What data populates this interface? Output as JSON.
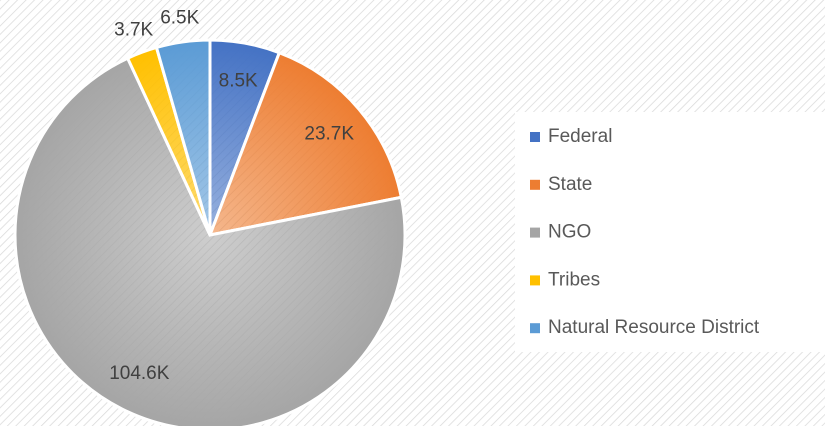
{
  "chart_data": {
    "type": "pie",
    "categories": [
      "Federal",
      "State",
      "NGO",
      "Tribes",
      "Natural Resource District"
    ],
    "values": [
      8500,
      23700,
      104600,
      3700,
      6500
    ],
    "value_labels": [
      "8.5K",
      "23.7K",
      "104.6K",
      "3.7K",
      "6.5K"
    ],
    "colors": [
      "#4472c4",
      "#ed7d31",
      "#a5a5a5",
      "#ffc000",
      "#5b9bd5"
    ],
    "legend": "right"
  }
}
